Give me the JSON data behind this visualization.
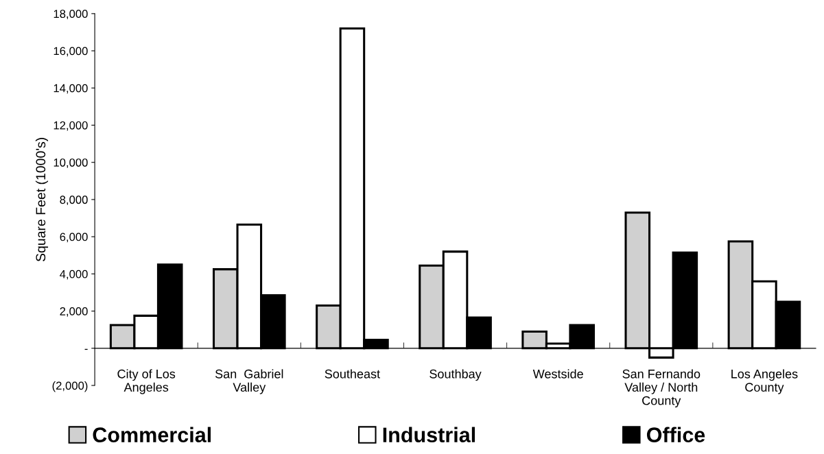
{
  "chart_data": {
    "type": "bar",
    "ylabel": "Square Feet (1000's)",
    "categories": [
      "City of Los\nAngeles",
      "San  Gabriel\nValley",
      "Southeast",
      "Southbay",
      "Westside",
      "San Fernando\nValley / North\nCounty",
      "Los Angeles\nCounty"
    ],
    "series": [
      {
        "name": "Commercial",
        "color": "#d0d0d0",
        "values": [
          1250,
          4250,
          2300,
          4450,
          900,
          7300,
          5750
        ]
      },
      {
        "name": "Industrial",
        "color": "#ffffff",
        "values": [
          1750,
          6650,
          17200,
          5200,
          250,
          -500,
          3600
        ]
      },
      {
        "name": "Office",
        "color": "#000000",
        "values": [
          4500,
          2850,
          450,
          1650,
          1250,
          5150,
          2500
        ]
      }
    ],
    "ylim": [
      -2000,
      18000
    ],
    "yticks": [
      {
        "value": -2000,
        "label": "(2,000)"
      },
      {
        "value": 0,
        "label": "-"
      },
      {
        "value": 2000,
        "label": "2,000"
      },
      {
        "value": 4000,
        "label": "4,000"
      },
      {
        "value": 6000,
        "label": "6,000"
      },
      {
        "value": 8000,
        "label": "8,000"
      },
      {
        "value": 10000,
        "label": "10,000"
      },
      {
        "value": 12000,
        "label": "12,000"
      },
      {
        "value": 14000,
        "label": "14,000"
      },
      {
        "value": 16000,
        "label": "16,000"
      },
      {
        "value": 18000,
        "label": "18,000"
      }
    ],
    "grid": false,
    "legend": "bottom"
  }
}
